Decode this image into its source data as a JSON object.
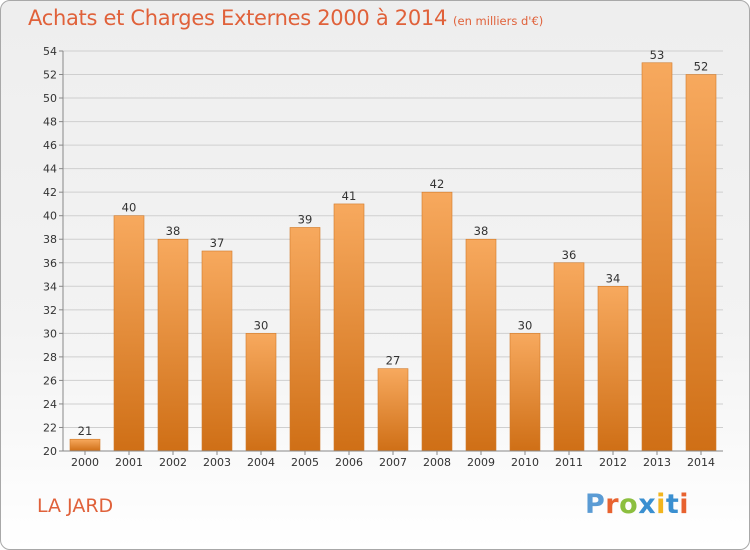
{
  "title": "Achats et Charges Externes 2000 à 2014",
  "subtitle": "(en milliers d'€)",
  "place": "LA JARD",
  "logo": {
    "text": "Proxiti",
    "letters": [
      {
        "ch": "P",
        "color": "#5a9bd4"
      },
      {
        "ch": "r",
        "color": "#e8622f"
      },
      {
        "ch": "o",
        "color": "#8cbf3f"
      },
      {
        "ch": "x",
        "color": "#3a8fd0"
      },
      {
        "ch": "i",
        "color": "#f2b51e"
      },
      {
        "ch": "t",
        "color": "#3a8fd0"
      },
      {
        "ch": "i",
        "color": "#e8622f"
      }
    ]
  },
  "colors": {
    "title": "#e0613a",
    "bar_top": "#f7a95e",
    "bar_bottom": "#cf6f16",
    "grid": "#cfcfcf"
  },
  "chart_data": {
    "type": "bar",
    "title": "Achats et Charges Externes 2000 à 2014",
    "subtitle": "(en milliers d'€)",
    "xlabel": "",
    "ylabel": "",
    "ylim": [
      20,
      54
    ],
    "yticks": [
      20,
      22,
      24,
      26,
      28,
      30,
      32,
      34,
      36,
      38,
      40,
      42,
      44,
      46,
      48,
      50,
      52,
      54
    ],
    "grid": true,
    "legend": "none",
    "categories": [
      "2000",
      "2001",
      "2002",
      "2003",
      "2004",
      "2005",
      "2006",
      "2007",
      "2008",
      "2009",
      "2010",
      "2011",
      "2012",
      "2013",
      "2014"
    ],
    "values": [
      21,
      40,
      38,
      37,
      30,
      39,
      41,
      27,
      42,
      38,
      30,
      36,
      34,
      53,
      52
    ]
  }
}
